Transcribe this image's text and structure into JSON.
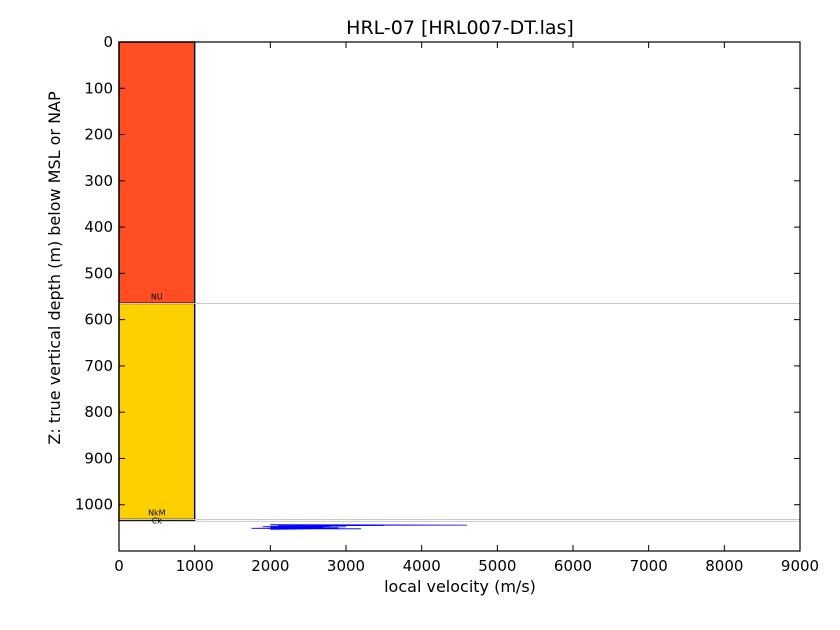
{
  "chart_data": {
    "type": "area",
    "title": "HRL-07 [HRL007-DT.las]",
    "xlabel": "local velocity (m/s)",
    "ylabel": "Z: true vertical depth (m) below MSL or NAP",
    "xlim": [
      0,
      9000
    ],
    "ylim": [
      1100,
      0
    ],
    "y_inverted": true,
    "x_ticks": [
      0,
      1000,
      2000,
      3000,
      4000,
      5000,
      6000,
      7000,
      8000,
      9000
    ],
    "y_ticks": [
      0,
      100,
      200,
      300,
      400,
      500,
      600,
      700,
      800,
      900,
      1000
    ],
    "grid": false,
    "units": [
      {
        "top": 0,
        "bottom": 565,
        "velocity": 1000,
        "color": "#ff4f22"
      },
      {
        "top": 565,
        "bottom": 1032,
        "velocity": 1000,
        "color": "#ffd000"
      },
      {
        "top": 1032,
        "bottom": 1035,
        "velocity": 1000,
        "color": "#000000"
      }
    ],
    "markers": [
      {
        "label": "NU",
        "depth": 565
      },
      {
        "label": "NkM",
        "depth": 1032
      },
      {
        "label": "Ck",
        "depth": 1036
      }
    ],
    "series": [
      {
        "color": "#0000ff",
        "points": [
          {
            "x": 2000,
            "y": 1043
          },
          {
            "x": 4600,
            "y": 1044
          },
          {
            "x": 2100,
            "y": 1045
          },
          {
            "x": 3500,
            "y": 1045
          },
          {
            "x": 2000,
            "y": 1046
          },
          {
            "x": 2800,
            "y": 1046
          },
          {
            "x": 2300,
            "y": 1047
          },
          {
            "x": 1900,
            "y": 1047
          },
          {
            "x": 3000,
            "y": 1048
          },
          {
            "x": 2200,
            "y": 1048
          },
          {
            "x": 2700,
            "y": 1049
          },
          {
            "x": 2000,
            "y": 1049
          },
          {
            "x": 2900,
            "y": 1050
          },
          {
            "x": 2100,
            "y": 1050
          },
          {
            "x": 1750,
            "y": 1051
          },
          {
            "x": 3200,
            "y": 1052
          },
          {
            "x": 2600,
            "y": 1052
          },
          {
            "x": 2000,
            "y": 1053
          }
        ]
      }
    ]
  }
}
